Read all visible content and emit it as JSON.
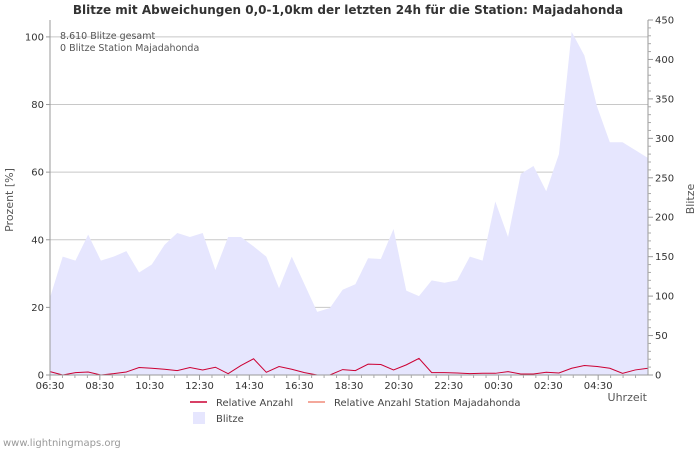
{
  "chart_data": {
    "type": "area",
    "title": "Blitze mit Abweichungen 0,0-1,0km der letzten 24h für die Station: Majadahonda",
    "ylabel": "Prozent   [%]",
    "y2label": "Blitze",
    "xlabel": "Uhrzeit",
    "ylim": [
      0,
      105
    ],
    "y2lim": [
      0,
      450
    ],
    "yticks": [
      0,
      20,
      40,
      60,
      80,
      100
    ],
    "y2ticks": [
      0,
      50,
      100,
      150,
      200,
      250,
      300,
      350,
      400,
      450
    ],
    "xticks": [
      "06:30",
      "08:30",
      "10:30",
      "12:30",
      "14:30",
      "16:30",
      "18:30",
      "20:30",
      "22:30",
      "00:30",
      "02:30",
      "04:30"
    ],
    "n_intervals": 48,
    "annotations": [
      "8.610 Blitze gesamt",
      "0 Blitze Station Majadahonda"
    ],
    "series": [
      {
        "name": "Blitze",
        "axis": "right",
        "color": "#e6e6fe",
        "values": [
          98,
          150,
          145,
          178,
          145,
          150,
          157,
          130,
          140,
          165,
          180,
          175,
          180,
          133,
          175,
          175,
          163,
          150,
          110,
          150,
          115,
          80,
          85,
          108,
          115,
          148,
          147,
          185,
          107,
          100,
          120,
          117,
          120,
          150,
          145,
          220,
          175,
          255,
          265,
          233,
          280,
          435,
          405,
          340,
          295,
          295,
          285,
          275
        ]
      },
      {
        "name": "Relative Anzahl",
        "axis": "left",
        "color": "#cc0033",
        "values": [
          1,
          0,
          0.7,
          0.9,
          0,
          0.4,
          0.9,
          2.2,
          2,
          1.7,
          1.3,
          2.2,
          1.5,
          2.3,
          0.4,
          2.8,
          4.8,
          0.8,
          2.5,
          1.7,
          0.7,
          0,
          0,
          1.6,
          1.3,
          3.2,
          3.1,
          1.5,
          3,
          4.9,
          0.7,
          0.7,
          0.6,
          0.4,
          0.5,
          0.5,
          1,
          0.3,
          0.3,
          0.8,
          0.6,
          2,
          2.8,
          2.5,
          2,
          0.5,
          1.5,
          2
        ]
      },
      {
        "name": "Relative Anzahl Station Majadahonda",
        "axis": "left",
        "color": "#f08c7a",
        "values": [
          0,
          0,
          0,
          0,
          0,
          0,
          0,
          0,
          0,
          0,
          0,
          0,
          0,
          0,
          0,
          0,
          0,
          0,
          0,
          0,
          0,
          0,
          0,
          0,
          0,
          0,
          0,
          0,
          0,
          0,
          0,
          0,
          0,
          0,
          0,
          0,
          0,
          0,
          0,
          0,
          0,
          0,
          0,
          0,
          0,
          0,
          0,
          0
        ]
      }
    ],
    "legend": [
      "Relative Anzahl",
      "Relative Anzahl Station Majadahonda",
      "Blitze"
    ]
  },
  "watermark": "www.lightningmaps.org"
}
